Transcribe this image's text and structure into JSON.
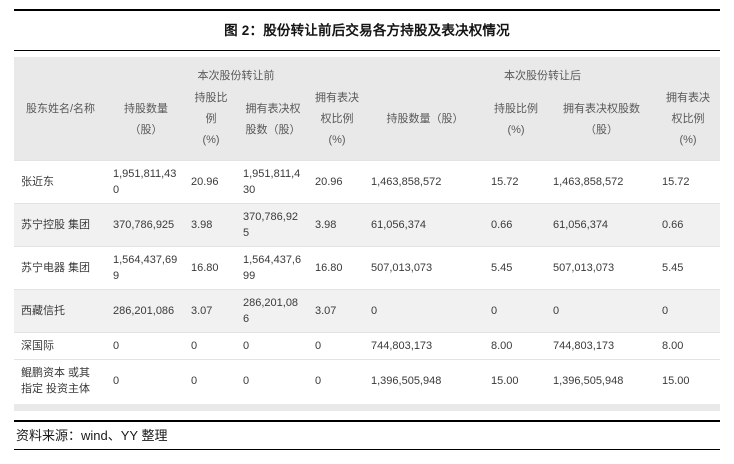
{
  "figure": {
    "title": "图 2：股份转让前后交易各方持股及表决权情况",
    "source": "资料来源：wind、YY 整理"
  },
  "table": {
    "name_header": "股东姓名/名称",
    "groups": [
      {
        "label": "本次股份转让前",
        "columns": [
          "持股数量\n（股）",
          "持股比\n例\n(%)",
          "拥有表决权\n股数（股）",
          "拥有表决\n权比例\n(%)"
        ]
      },
      {
        "label": "本次股份转让后",
        "columns": [
          "持股数量（股）",
          "持股比例\n(%)",
          "拥有表决权股数\n（股）",
          "拥有表决\n权比例\n(%)"
        ]
      }
    ],
    "rows": [
      {
        "name": "张近东",
        "values": [
          "1,951,811,430",
          "20.96",
          "1,951,811,430",
          "20.96",
          "1,463,858,572",
          "15.72",
          "1,463,858,572",
          "15.72"
        ]
      },
      {
        "name": "苏宁控股 集团",
        "values": [
          "370,786,925",
          "3.98",
          "370,786,925",
          "3.98",
          "61,056,374",
          "0.66",
          "61,056,374",
          "0.66"
        ]
      },
      {
        "name": "苏宁电器 集团",
        "values": [
          "1,564,437,699",
          "16.80",
          "1,564,437,699",
          "16.80",
          "507,013,073",
          "5.45",
          "507,013,073",
          "5.45"
        ]
      },
      {
        "name": "西藏信托",
        "values": [
          "286,201,086",
          "3.07",
          "286,201,086",
          "3.07",
          "0",
          "0",
          "0",
          "0"
        ]
      },
      {
        "name": "深国际",
        "values": [
          "0",
          "0",
          "0",
          "0",
          "744,803,173",
          "8.00",
          "744,803,173",
          "8.00"
        ]
      },
      {
        "name": "鲲鹏资本 或其指定 投资主体",
        "values": [
          "0",
          "0",
          "0",
          "0",
          "1,396,505,948",
          "15.00",
          "1,396,505,948",
          "15.00"
        ]
      }
    ]
  },
  "colors": {
    "header_bg": "#e9e9e9",
    "stripe_bg": "#f1f1f1",
    "rule": "#000000"
  }
}
